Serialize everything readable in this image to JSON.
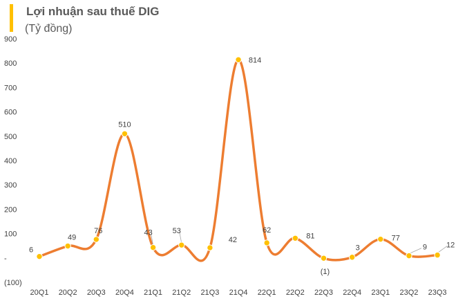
{
  "chart_data": {
    "type": "line",
    "title": "Lợi nhuận sau thuế DIG",
    "subtitle": "(Tỷ đồng)",
    "categories": [
      "20Q1",
      "20Q2",
      "20Q3",
      "20Q4",
      "21Q1",
      "21Q2",
      "21Q3",
      "21Q4",
      "22Q1",
      "22Q2",
      "22Q3",
      "22Q4",
      "23Q1",
      "23Q2",
      "23Q3"
    ],
    "series": [
      {
        "values": [
          6,
          49,
          76,
          510,
          43,
          53,
          42,
          814,
          62,
          81,
          -1,
          3,
          77,
          9,
          12
        ]
      }
    ],
    "data_labels": [
      "6",
      "49",
      "76",
      "510",
      "43",
      "53",
      "42",
      "814",
      "62",
      "81",
      "(1)",
      "3",
      "77",
      "9",
      "12"
    ],
    "y_ticks": [
      900,
      800,
      700,
      600,
      500,
      400,
      300,
      200,
      100,
      0,
      -100
    ],
    "y_tick_labels": [
      "900",
      "800",
      "700",
      "600",
      "500",
      "400",
      "300",
      "200",
      "100",
      "-",
      "(100)"
    ],
    "ylim": [
      -100,
      900
    ],
    "grid": false,
    "line_style": "smooth",
    "colors": {
      "line": "#ED7D31",
      "marker": "#FFC000",
      "accent_bar": "#FFC000",
      "text": "#404040"
    }
  }
}
